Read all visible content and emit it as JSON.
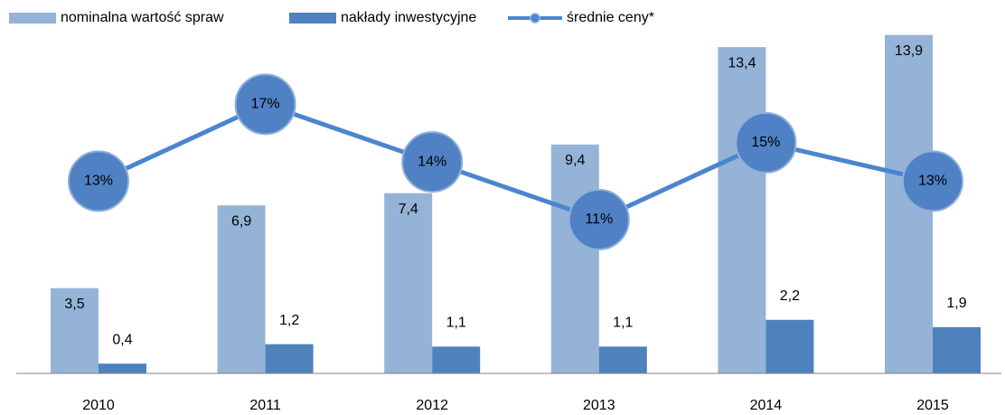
{
  "chart_data": {
    "type": "bar",
    "categories": [
      "2010",
      "2011",
      "2012",
      "2013",
      "2014",
      "2015"
    ],
    "series": [
      {
        "name": "nominalna wartość spraw",
        "type": "bar",
        "color": "#95b3d7",
        "values": [
          3.5,
          6.9,
          7.4,
          9.4,
          13.4,
          13.9
        ],
        "value_labels": [
          "3,5",
          "6,9",
          "7,4",
          "9,4",
          "13,4",
          "13,9"
        ]
      },
      {
        "name": "nakłady inwestycyjne",
        "type": "bar",
        "color": "#4f81bd",
        "values": [
          0.4,
          1.2,
          1.1,
          1.1,
          2.2,
          1.9
        ],
        "value_labels": [
          "0,4",
          "1,2",
          "1,1",
          "1,1",
          "2,2",
          "1,9"
        ]
      },
      {
        "name": "średnie ceny*",
        "type": "line",
        "axis": "y2",
        "color": "#4a86cf",
        "values": [
          13,
          17,
          14,
          11,
          15,
          13
        ],
        "value_labels": [
          "13%",
          "17%",
          "14%",
          "11%",
          "15%",
          "13%"
        ]
      }
    ],
    "ylim": [
      0,
      15
    ],
    "y2lim": [
      3,
      22
    ],
    "grid": false,
    "legend": "top"
  }
}
